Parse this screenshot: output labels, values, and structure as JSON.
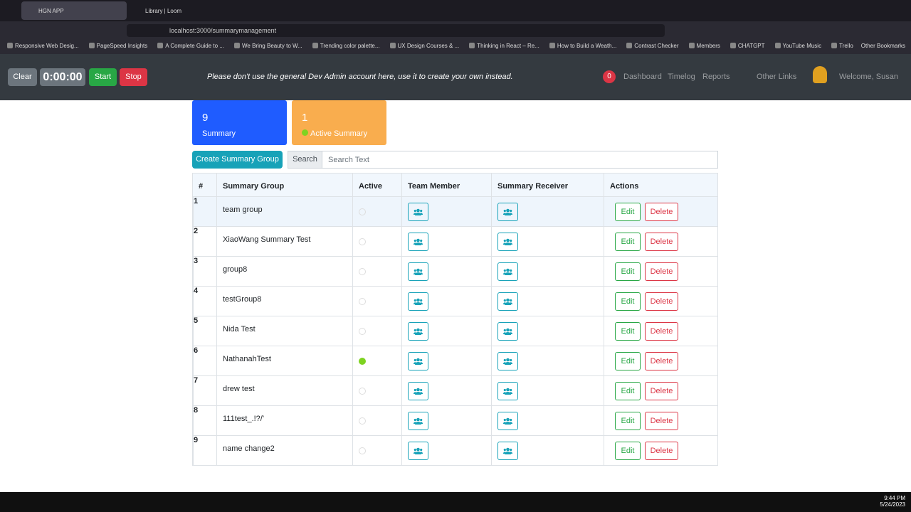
{
  "browser": {
    "tabs": [
      "HGN APP",
      "Library | Loom"
    ],
    "url": "localhost:3000/summarymanagement",
    "bookmarks": [
      "Responsive Web Desig...",
      "PageSpeed Insights",
      "A Complete Guide to ...",
      "We Bring Beauty to W...",
      "Trending color palette...",
      "UX Design Courses & ...",
      "Thinking in React – Re...",
      "How to Build a Weath...",
      "Contrast Checker",
      "Members",
      "CHATGPT",
      "YouTube Music",
      "Trello"
    ],
    "other_bookmarks": "Other Bookmarks"
  },
  "navbar": {
    "clear": "Clear",
    "timer": "0:00:00",
    "start": "Start",
    "stop": "Stop",
    "notice": "Please don't use the general Dev Admin account here, use it to create your own instead.",
    "badge": 0,
    "links": [
      "Dashboard",
      "Timelog",
      "Reports",
      "Other Links"
    ],
    "welcome": "Welcome, Susan"
  },
  "cards": [
    {
      "count": 9,
      "label": "Summary"
    },
    {
      "count": 1,
      "label": "Active Summary"
    }
  ],
  "toolbar": {
    "create": "Create Summary Group",
    "search_label": "Search",
    "search_placeholder": "Search Text"
  },
  "table": {
    "headers": [
      "#",
      "Summary Group",
      "Active",
      "Team Member",
      "Summary Receiver",
      "Actions"
    ],
    "edit": "Edit",
    "delete": "Delete",
    "rows": [
      {
        "index": 1,
        "name": "team group",
        "active": false
      },
      {
        "index": 2,
        "name": "XiaoWang Summary Test",
        "active": false
      },
      {
        "index": 3,
        "name": "group8",
        "active": false
      },
      {
        "index": 4,
        "name": "testGroup8",
        "active": false
      },
      {
        "index": 5,
        "name": "Nida Test",
        "active": false
      },
      {
        "index": 6,
        "name": "NathanahTest",
        "active": true
      },
      {
        "index": 7,
        "name": "drew test",
        "active": false
      },
      {
        "index": 8,
        "name": "111test_.!?/'",
        "active": false
      },
      {
        "index": 9,
        "name": "name change2",
        "active": false
      }
    ]
  },
  "taskbar": {
    "time": "9:44 PM",
    "date": "5/24/2023"
  }
}
